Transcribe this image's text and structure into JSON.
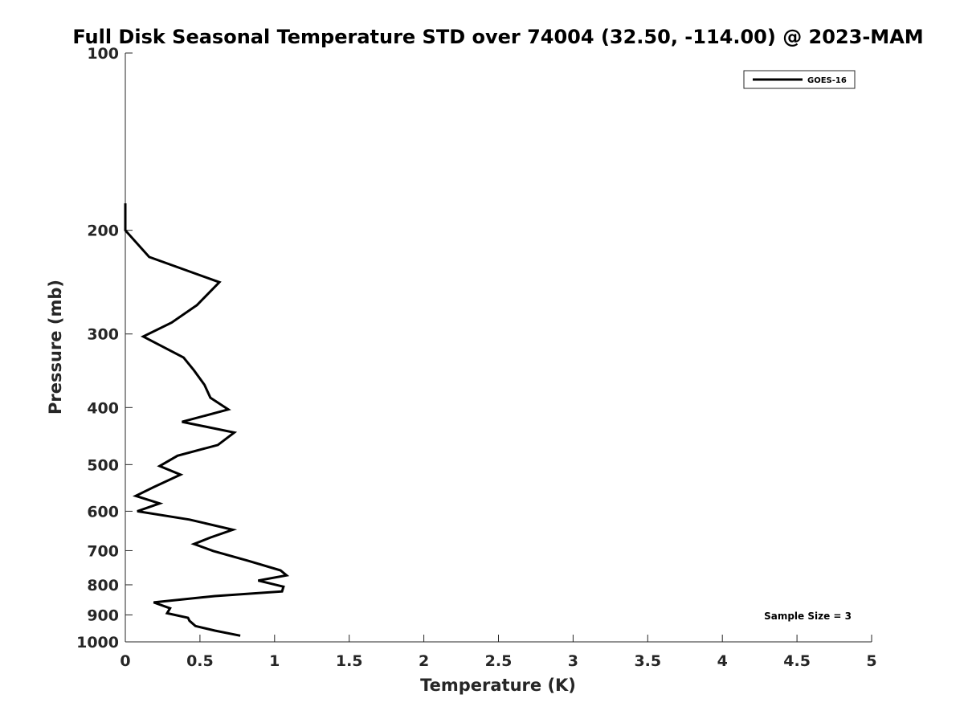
{
  "chart_data": {
    "type": "line",
    "title": "Full Disk Seasonal Temperature STD over 74004 (32.50, -114.00) @ 2023-MAM",
    "xlabel": "Temperature (K)",
    "ylabel": "Pressure (mb)",
    "xlim": [
      0,
      5
    ],
    "ylim": [
      100,
      1000
    ],
    "yscale": "log",
    "yreversed": true,
    "x_ticks": [
      "0",
      "0.5",
      "1",
      "1.5",
      "2",
      "2.5",
      "3",
      "3.5",
      "4",
      "4.5",
      "5"
    ],
    "y_ticks": [
      "100",
      "200",
      "300",
      "400",
      "500",
      "600",
      "700",
      "800",
      "900",
      "1000"
    ],
    "grid": false,
    "legend_position": "top-right",
    "annotation": "Sample Size = 3",
    "series": [
      {
        "name": "GOES-16",
        "color": "#000000",
        "points": [
          [
            0.0,
            180
          ],
          [
            0.0,
            196
          ],
          [
            0.0,
            200
          ],
          [
            0.16,
            222
          ],
          [
            0.63,
            245
          ],
          [
            0.48,
            268
          ],
          [
            0.31,
            287
          ],
          [
            0.12,
            303
          ],
          [
            0.39,
            329
          ],
          [
            0.46,
            346
          ],
          [
            0.53,
            366
          ],
          [
            0.57,
            385
          ],
          [
            0.69,
            403
          ],
          [
            0.38,
            423
          ],
          [
            0.73,
            441
          ],
          [
            0.62,
            463
          ],
          [
            0.35,
            483
          ],
          [
            0.23,
            503
          ],
          [
            0.37,
            520
          ],
          [
            0.19,
            546
          ],
          [
            0.07,
            565
          ],
          [
            0.23,
            582
          ],
          [
            0.08,
            600
          ],
          [
            0.43,
            620
          ],
          [
            0.72,
            645
          ],
          [
            0.57,
            665
          ],
          [
            0.46,
            682
          ],
          [
            0.59,
            701
          ],
          [
            0.82,
            728
          ],
          [
            1.04,
            756
          ],
          [
            1.08,
            771
          ],
          [
            0.89,
            787
          ],
          [
            1.06,
            806
          ],
          [
            1.05,
            821
          ],
          [
            0.6,
            836
          ],
          [
            0.19,
            857
          ],
          [
            0.3,
            877
          ],
          [
            0.28,
            894
          ],
          [
            0.42,
            910
          ],
          [
            0.43,
            921
          ],
          [
            0.47,
            940
          ],
          [
            0.6,
            957
          ],
          [
            0.77,
            976
          ]
        ]
      }
    ]
  }
}
